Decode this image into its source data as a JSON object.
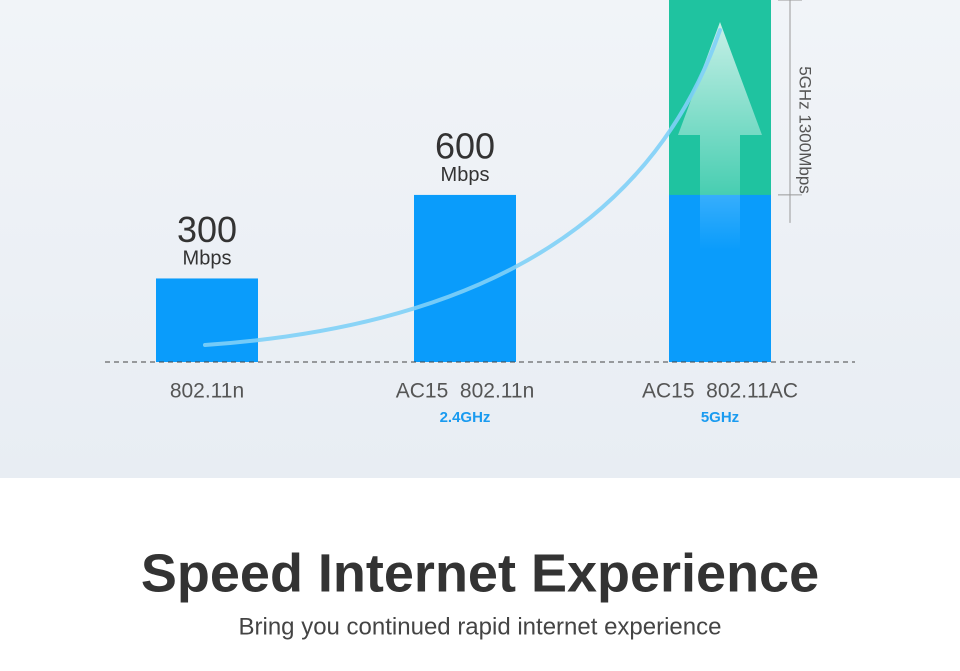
{
  "chart_data": {
    "type": "bar",
    "categories": [
      "802.11n",
      "AC15  802.11n",
      "AC15  802.11AC"
    ],
    "band_labels": [
      null,
      "2.4GHz",
      "5GHz"
    ],
    "values": [
      300,
      600,
      1300
    ],
    "unit": "Mbps",
    "annotation": "5GHz 1300Mbps",
    "color": "#0a9cfb",
    "accent_color": "#1fc3a0",
    "ylim": [
      0,
      1300
    ],
    "title": "Speed Internet Experience",
    "subtitle": "Bring you continued rapid internet experience"
  }
}
